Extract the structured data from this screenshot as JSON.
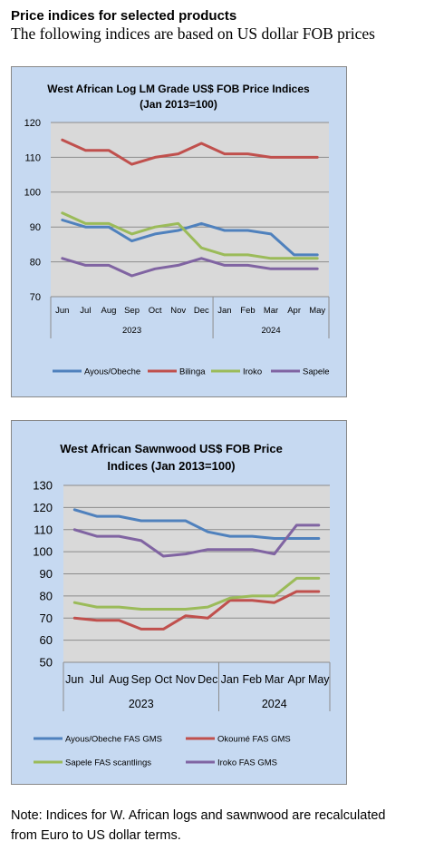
{
  "page": {
    "heading": "Price indices for selected products",
    "subheading": "The following indices are based on US dollar FOB prices",
    "note_line1": "Note: Indices for W. African logs and sawnwood are recalculated",
    "note_line2": "from Euro to US dollar terms."
  },
  "chart_data": [
    {
      "type": "line",
      "title_lines": [
        "West African Log LM Grade US$ FOB Price Indices",
        "(Jan 2013=100)"
      ],
      "categories": [
        "Jun",
        "Jul",
        "Aug",
        "Sep",
        "Oct",
        "Nov",
        "Dec",
        "Jan",
        "Feb",
        "Mar",
        "Apr",
        "May"
      ],
      "groups": [
        {
          "label": "2023",
          "count": 7
        },
        {
          "label": "2024",
          "count": 5
        }
      ],
      "ylim": [
        70,
        120
      ],
      "yticks": [
        70,
        80,
        90,
        100,
        110,
        120
      ],
      "grid": true,
      "legend_position": "bottom",
      "series": [
        {
          "name": "Ayous/Obeche",
          "color": "#4f81bd",
          "values": [
            92,
            90,
            90,
            86,
            88,
            89,
            91,
            89,
            89,
            88,
            82,
            82
          ]
        },
        {
          "name": "Bilinga",
          "color": "#c0504d",
          "values": [
            115,
            112,
            112,
            108,
            110,
            111,
            114,
            111,
            111,
            110,
            110,
            110
          ]
        },
        {
          "name": "Iroko",
          "color": "#9bbb59",
          "values": [
            94,
            91,
            91,
            88,
            90,
            91,
            84,
            82,
            82,
            81,
            81,
            81
          ]
        },
        {
          "name": "Sapele",
          "color": "#8064a2",
          "values": [
            81,
            79,
            79,
            76,
            78,
            79,
            81,
            79,
            79,
            78,
            78,
            78
          ]
        }
      ]
    },
    {
      "type": "line",
      "title_lines": [
        "West African Sawnwood US$ FOB Price",
        "Indices (Jan 2013=100)"
      ],
      "categories": [
        "Jun",
        "Jul",
        "Aug",
        "Sep",
        "Oct",
        "Nov",
        "Dec",
        "Jan",
        "Feb",
        "Mar",
        "Apr",
        "May"
      ],
      "groups": [
        {
          "label": "2023",
          "count": 7
        },
        {
          "label": "2024",
          "count": 5
        }
      ],
      "ylim": [
        50,
        130
      ],
      "yticks": [
        50,
        60,
        70,
        80,
        90,
        100,
        110,
        120,
        130
      ],
      "grid": true,
      "legend_position": "bottom",
      "series": [
        {
          "name": "Ayous/Obeche  FAS GMS",
          "color": "#4f81bd",
          "values": [
            119,
            116,
            116,
            114,
            114,
            114,
            109,
            107,
            107,
            106,
            106,
            106
          ]
        },
        {
          "name": "Okoumé  FAS GMS",
          "color": "#c0504d",
          "values": [
            70,
            69,
            69,
            65,
            65,
            71,
            70,
            78,
            78,
            77,
            82,
            82
          ]
        },
        {
          "name": "Sapele FAS scantlings",
          "color": "#9bbb59",
          "values": [
            77,
            75,
            75,
            74,
            74,
            74,
            75,
            79,
            80,
            80,
            88,
            88
          ]
        },
        {
          "name": "Iroko FAS GMS",
          "color": "#8064a2",
          "values": [
            110,
            107,
            107,
            105,
            98,
            99,
            101,
            101,
            101,
            99,
            112,
            112
          ]
        }
      ]
    }
  ]
}
